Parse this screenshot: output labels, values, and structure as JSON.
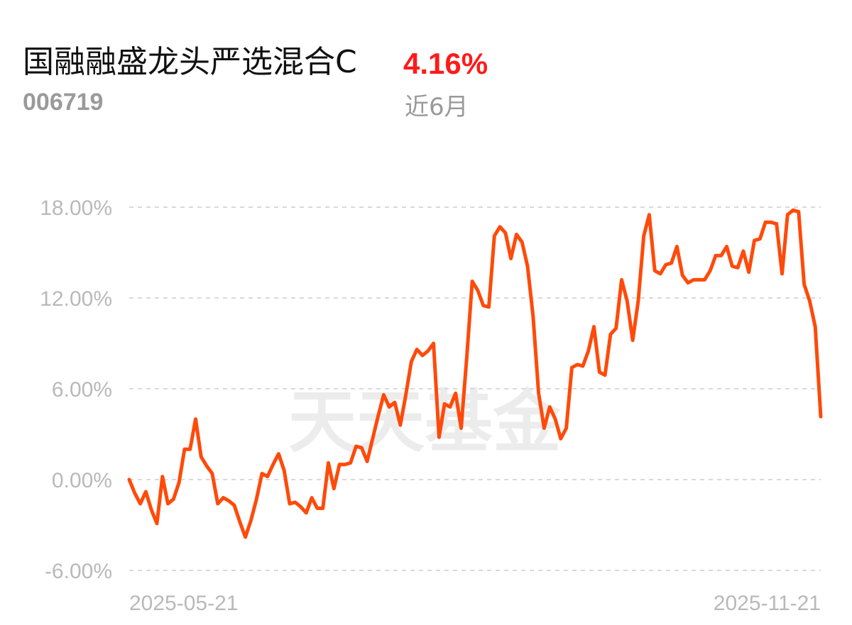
{
  "header": {
    "fund_name": "国融融盛龙头严选混合C",
    "return_value": "4.16%",
    "fund_code": "006719",
    "period_label": "近6月",
    "return_color": "#ff1a1a"
  },
  "watermark": "天天基金",
  "chart_data": {
    "type": "line",
    "title": "",
    "xlabel": "",
    "ylabel": "",
    "ylim": [
      -6,
      18
    ],
    "y_ticks": [
      18,
      12,
      6,
      0,
      -6
    ],
    "y_tick_labels": [
      "18.00%",
      "12.00%",
      "6.00%",
      "0.00%",
      "-6.00%"
    ],
    "x_tick_labels": [
      "2025-05-21",
      "2025-11-21"
    ],
    "grid": true,
    "line_color": "#ff4a0a",
    "series": [
      {
        "name": "",
        "values": [
          0.0,
          -0.9,
          -1.6,
          -0.8,
          -2.0,
          -2.9,
          0.2,
          -1.6,
          -1.3,
          -0.2,
          2.0,
          2.0,
          4.0,
          1.5,
          0.9,
          0.4,
          -1.6,
          -1.2,
          -1.4,
          -1.7,
          -2.8,
          -3.8,
          -2.7,
          -1.3,
          0.4,
          0.2,
          1.0,
          1.7,
          0.6,
          -1.6,
          -1.5,
          -1.8,
          -2.2,
          -1.2,
          -1.9,
          -1.9,
          1.1,
          -0.6,
          1.0,
          1.0,
          1.1,
          2.2,
          2.1,
          1.2,
          2.7,
          4.2,
          5.6,
          4.8,
          5.1,
          3.6,
          5.6,
          7.8,
          8.6,
          8.2,
          8.5,
          9.0,
          2.8,
          5.0,
          4.8,
          5.7,
          3.4,
          8.0,
          13.1,
          12.5,
          11.5,
          11.4,
          16.1,
          16.7,
          16.3,
          14.6,
          16.2,
          15.7,
          14.1,
          10.8,
          5.7,
          3.4,
          4.8,
          4.0,
          2.7,
          3.4,
          7.4,
          7.6,
          7.5,
          8.5,
          10.1,
          7.1,
          6.9,
          9.6,
          10.0,
          13.2,
          11.8,
          9.2,
          11.8,
          16.1,
          17.5,
          13.8,
          13.6,
          14.2,
          14.3,
          15.4,
          13.5,
          13.0,
          13.2,
          13.2,
          13.2,
          13.8,
          14.8,
          14.8,
          15.4,
          14.1,
          14.0,
          15.1,
          13.7,
          15.8,
          15.9,
          17.0,
          17.0,
          16.9,
          13.6,
          17.5,
          17.8,
          17.7,
          12.9,
          11.8,
          10.1,
          4.16
        ]
      }
    ]
  }
}
